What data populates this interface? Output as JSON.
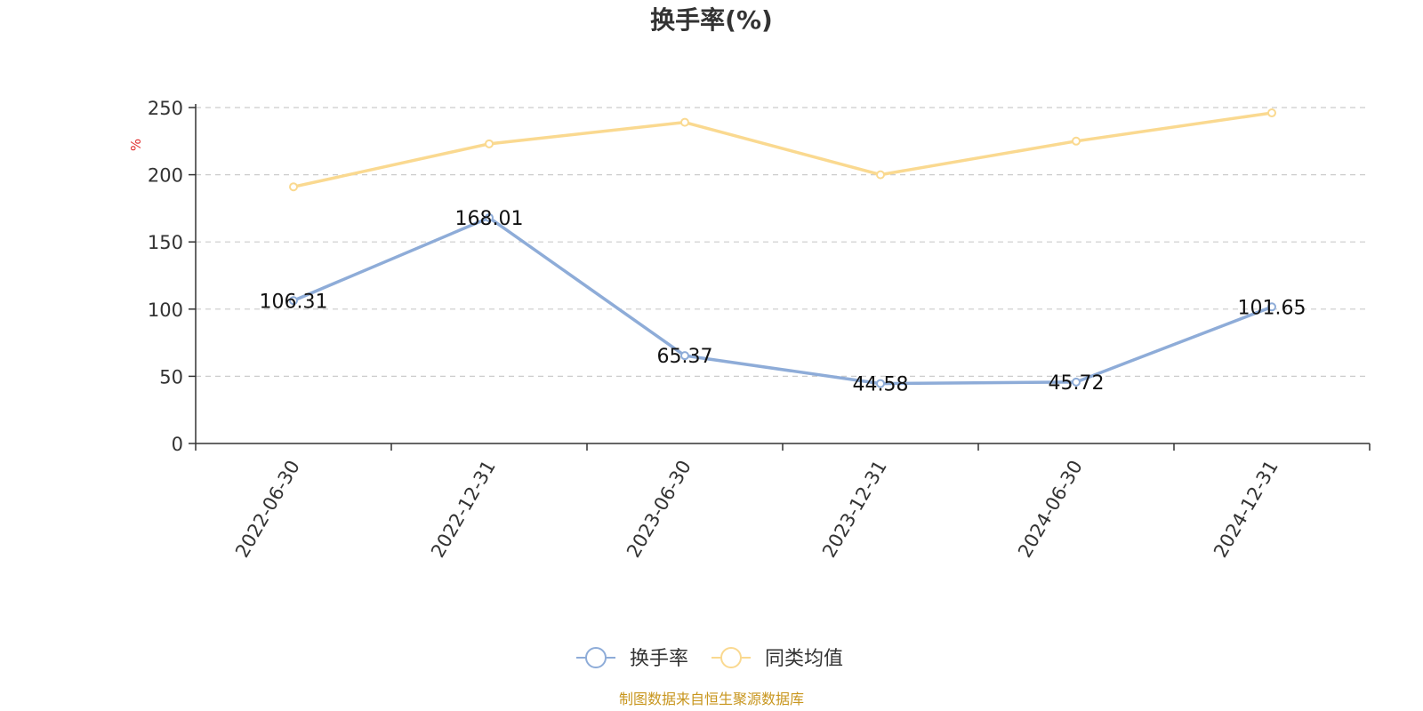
{
  "chart_data": {
    "type": "line",
    "title": "换手率(%)",
    "ylabel": "%",
    "xlabel": "",
    "categories": [
      "2022-06-30",
      "2022-12-31",
      "2023-06-30",
      "2023-12-31",
      "2024-06-30",
      "2024-12-31"
    ],
    "ylim": [
      0,
      250
    ],
    "yticks": [
      "0",
      "50",
      "100",
      "150",
      "200",
      "250"
    ],
    "grid": true,
    "legend_position": "bottom-center",
    "series": [
      {
        "name": "换手率",
        "color": "#8eacd8",
        "values": [
          106.31,
          168.01,
          65.37,
          44.58,
          45.72,
          101.65
        ],
        "labels": [
          "106.31",
          "168.01",
          "65.37",
          "44.58",
          "45.72",
          "101.65"
        ]
      },
      {
        "name": "同类均值",
        "color": "#fad990",
        "values": [
          191,
          223,
          239,
          200,
          225,
          246
        ]
      }
    ],
    "source": "制图数据来自恒生聚源数据库",
    "source_color": "#c8961e",
    "unit_color": "#e03030"
  }
}
